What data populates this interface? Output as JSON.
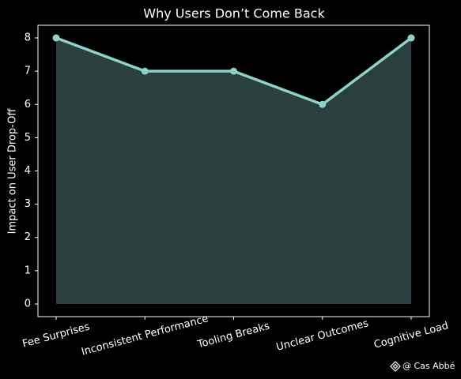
{
  "chart_data": {
    "type": "area-line",
    "title": "Why Users Don’t Come Back",
    "y_label": "Impact on User Drop-Off",
    "categories": [
      "Fee Surprises",
      "Inconsistent Performance",
      "Tooling Breaks",
      "Unclear Outcomes",
      "Cognitive Load"
    ],
    "values": [
      8,
      7,
      7,
      6,
      8
    ],
    "color": "#8dd3c7",
    "fill_color": "#2a403e",
    "ylim": [
      -0.38,
      8.38
    ],
    "yticks": [
      0,
      1,
      2,
      3,
      4,
      5,
      6,
      7,
      8
    ],
    "grid": false,
    "watermark": "@ Cas Abbé"
  }
}
